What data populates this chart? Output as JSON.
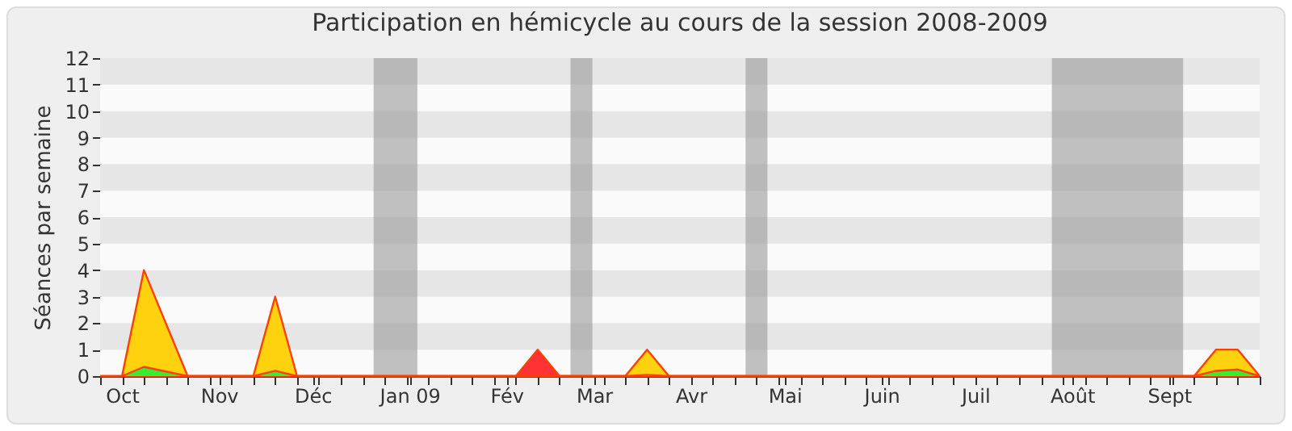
{
  "chart_data": {
    "type": "area",
    "title": "Participation en hémicycle au cours de la session 2008-2009",
    "ylabel": "Séances par semaine",
    "xlim": [
      "2008-09-24",
      "2009-09-30"
    ],
    "xticks": [
      {
        "value": "2008-09-24",
        "label": null
      },
      {
        "value": "2008-10-01",
        "label": "Oct"
      },
      {
        "value": "2008-10-08",
        "label": null
      },
      {
        "value": "2008-10-15",
        "label": null
      },
      {
        "value": "2008-10-22",
        "label": null
      },
      {
        "value": "2008-10-29",
        "label": null
      },
      {
        "value": "2008-11-01",
        "label": "Nov"
      },
      {
        "value": "2008-11-05",
        "label": null
      },
      {
        "value": "2008-11-12",
        "label": null
      },
      {
        "value": "2008-11-19",
        "label": null
      },
      {
        "value": "2008-11-26",
        "label": null
      },
      {
        "value": "2008-12-01",
        "label": "Déc"
      },
      {
        "value": "2008-12-03",
        "label": null
      },
      {
        "value": "2008-12-10",
        "label": null
      },
      {
        "value": "2008-12-17",
        "label": null
      },
      {
        "value": "2008-12-24",
        "label": null
      },
      {
        "value": "2008-12-31",
        "label": null
      },
      {
        "value": "2009-01-01",
        "label": "Jan 09"
      },
      {
        "value": "2009-01-07",
        "label": null
      },
      {
        "value": "2009-01-14",
        "label": null
      },
      {
        "value": "2009-01-21",
        "label": null
      },
      {
        "value": "2009-01-28",
        "label": null
      },
      {
        "value": "2009-02-01",
        "label": "Fév"
      },
      {
        "value": "2009-02-04",
        "label": null
      },
      {
        "value": "2009-02-11",
        "label": null
      },
      {
        "value": "2009-02-18",
        "label": null
      },
      {
        "value": "2009-02-25",
        "label": null
      },
      {
        "value": "2009-03-01",
        "label": "Mar"
      },
      {
        "value": "2009-03-04",
        "label": null
      },
      {
        "value": "2009-03-11",
        "label": null
      },
      {
        "value": "2009-03-18",
        "label": null
      },
      {
        "value": "2009-03-25",
        "label": null
      },
      {
        "value": "2009-04-01",
        "label": "Avr"
      },
      {
        "value": "2009-04-08",
        "label": null
      },
      {
        "value": "2009-04-15",
        "label": null
      },
      {
        "value": "2009-04-22",
        "label": null
      },
      {
        "value": "2009-04-29",
        "label": null
      },
      {
        "value": "2009-05-01",
        "label": "Mai"
      },
      {
        "value": "2009-05-06",
        "label": null
      },
      {
        "value": "2009-05-13",
        "label": null
      },
      {
        "value": "2009-05-20",
        "label": null
      },
      {
        "value": "2009-05-27",
        "label": null
      },
      {
        "value": "2009-06-01",
        "label": "Juin"
      },
      {
        "value": "2009-06-03",
        "label": null
      },
      {
        "value": "2009-06-10",
        "label": null
      },
      {
        "value": "2009-06-17",
        "label": null
      },
      {
        "value": "2009-06-24",
        "label": null
      },
      {
        "value": "2009-07-01",
        "label": "Juil"
      },
      {
        "value": "2009-07-08",
        "label": null
      },
      {
        "value": "2009-07-15",
        "label": null
      },
      {
        "value": "2009-07-22",
        "label": null
      },
      {
        "value": "2009-07-29",
        "label": null
      },
      {
        "value": "2009-08-01",
        "label": "Août"
      },
      {
        "value": "2009-08-05",
        "label": null
      },
      {
        "value": "2009-08-12",
        "label": null
      },
      {
        "value": "2009-08-19",
        "label": null
      },
      {
        "value": "2009-08-26",
        "label": null
      },
      {
        "value": "2009-09-01",
        "label": "Sept"
      },
      {
        "value": "2009-09-02",
        "label": null
      },
      {
        "value": "2009-09-09",
        "label": null
      },
      {
        "value": "2009-09-16",
        "label": null
      },
      {
        "value": "2009-09-23",
        "label": null
      },
      {
        "value": "2009-09-30",
        "label": null
      }
    ],
    "ylim": [
      0,
      12
    ],
    "yticks": [
      0,
      1,
      2,
      3,
      4,
      5,
      6,
      7,
      8,
      9,
      10,
      11,
      12
    ],
    "bands": [
      {
        "axis": "x",
        "from": "2008-12-20T12:00",
        "to": "2009-01-03T12:00",
        "color": "#999999"
      },
      {
        "axis": "x",
        "from": "2009-02-21T12:00",
        "to": "2009-02-28T12:00",
        "color": "#999999"
      },
      {
        "axis": "x",
        "from": "2009-04-18T12:00",
        "to": "2009-04-25T12:00",
        "color": "#999999"
      },
      {
        "axis": "x",
        "from": "2009-07-25T12:00",
        "to": "2009-09-05T12:00",
        "color": "#999999"
      }
    ],
    "series": [
      {
        "color": "#ff3333",
        "x": [
          "2008-09-24",
          "2009-02-04",
          "2009-02-11",
          "2009-02-18",
          "2009-09-30"
        ],
        "values": [
          0,
          0,
          1,
          0,
          0
        ]
      },
      {
        "color": "#ffd20f",
        "x": [
          "2008-09-24",
          "2008-10-01",
          "2008-10-08",
          "2008-10-22",
          "2008-11-12",
          "2008-11-19",
          "2008-11-26",
          "2009-03-11",
          "2009-03-18",
          "2009-03-25",
          "2009-09-09",
          "2009-09-16",
          "2009-09-23",
          "2009-09-30"
        ],
        "values": [
          0,
          0,
          4,
          0,
          0,
          3,
          0,
          0,
          1,
          0,
          0,
          1,
          1,
          0
        ]
      },
      {
        "color": "#33ee33",
        "x": [
          "2008-10-01",
          "2008-10-08",
          "2008-10-22",
          "2008-11-12",
          "2008-11-19",
          "2008-11-26",
          "2009-03-11",
          "2009-03-18",
          "2009-03-25",
          "2009-09-09",
          "2009-09-16",
          "2009-09-23",
          "2009-09-30"
        ],
        "values": [
          0,
          0.35,
          0,
          0,
          0.2,
          0,
          0,
          0.05,
          0,
          0,
          0.2,
          0.25,
          0
        ]
      }
    ]
  }
}
